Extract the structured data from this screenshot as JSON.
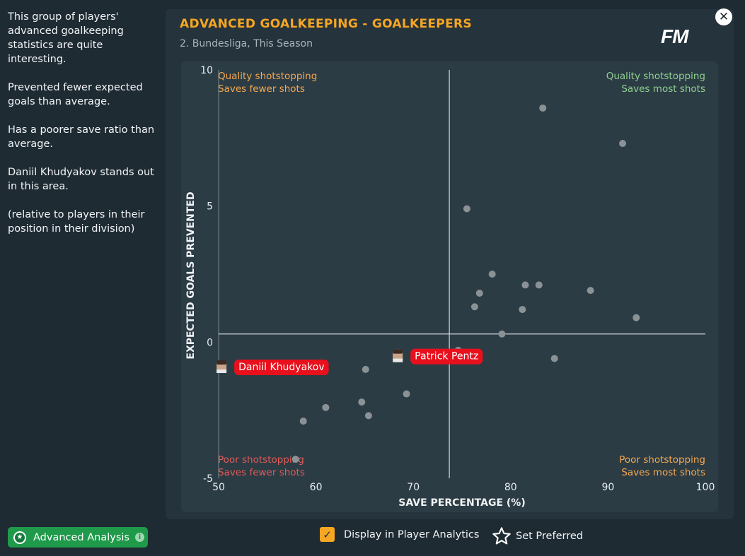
{
  "sidebar": {
    "paragraphs": [
      "This group of players' advanced goalkeeping statistics are quite interesting.",
      "Prevented fewer expected goals than average.",
      "Has a poorer save ratio than average.",
      "Daniil Khudyakov stands out in this area.",
      "(relative to players in their position in their division)"
    ]
  },
  "header": {
    "title": "ADVANCED GOALKEEPING - GOALKEEPERS",
    "subtitle": "2. Bundesliga, This Season",
    "logo": "FM",
    "close_icon": "close-icon"
  },
  "footer": {
    "advanced_analysis_label": "Advanced Analysis",
    "display_label": "Display in Player Analytics",
    "display_checked": true,
    "set_preferred_label": "Set Preferred"
  },
  "colors": {
    "accent": "#f5a623",
    "green_button": "#1e9a4a",
    "highlight": "#e8101c",
    "quadrant_green": "#8fd18f",
    "quadrant_orange": "#f5a84f",
    "quadrant_red": "#e05a55",
    "dot": "#8a9296"
  },
  "chart_data": {
    "type": "scatter",
    "title": "ADVANCED GOALKEEPING - GOALKEEPERS",
    "xlabel": "SAVE PERCENTAGE (%)",
    "ylabel": "EXPECTED GOALS PREVENTED",
    "xlim": [
      50,
      100
    ],
    "ylim": [
      -5,
      10
    ],
    "xticks": [
      50,
      60,
      70,
      80,
      90,
      100
    ],
    "yticks": [
      -5,
      0,
      5,
      10
    ],
    "average": {
      "x": 73.7,
      "y": 0.3
    },
    "quadrants": {
      "top_left": [
        "Quality shotstopping",
        "Saves fewer shots"
      ],
      "top_right": [
        "Quality shotstopping",
        "Saves most shots"
      ],
      "bottom_left": [
        "Poor shotstopping",
        "Saves fewer shots"
      ],
      "bottom_right": [
        "Poor shotstopping",
        "Saves most shots"
      ]
    },
    "points": [
      [
        83.3,
        8.6
      ],
      [
        91.5,
        7.3
      ],
      [
        75.5,
        4.9
      ],
      [
        78.1,
        2.5
      ],
      [
        81.5,
        2.1
      ],
      [
        82.9,
        2.1
      ],
      [
        88.2,
        1.9
      ],
      [
        76.8,
        1.8
      ],
      [
        76.3,
        1.3
      ],
      [
        81.2,
        1.2
      ],
      [
        92.9,
        0.9
      ],
      [
        79.1,
        0.3
      ],
      [
        74.6,
        -0.3
      ],
      [
        84.5,
        -0.6
      ],
      [
        65.1,
        -1.0
      ],
      [
        69.3,
        -1.9
      ],
      [
        64.7,
        -2.2
      ],
      [
        61.0,
        -2.4
      ],
      [
        65.4,
        -2.7
      ],
      [
        58.7,
        -2.9
      ],
      [
        57.9,
        -4.3
      ]
    ],
    "highlighted": [
      {
        "name": "Daniil Khudyakov",
        "x": 50.3,
        "y": -0.9
      },
      {
        "name": "Patrick Pentz",
        "x": 68.4,
        "y": -0.5
      }
    ]
  }
}
